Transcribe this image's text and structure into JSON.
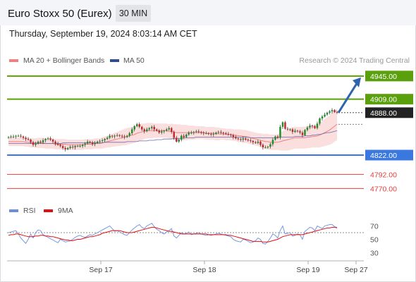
{
  "header": {
    "title": "Euro Stoxx 50 (Eurex)",
    "timeframe": "30 MIN"
  },
  "timestamp": "Thursday, September 19, 2024 8:03:14 AM CET",
  "legend": {
    "bollinger": "MA 20 + Bollinger Bands",
    "ma50": "MA 50",
    "credit": "Research © 2024 Trading Central"
  },
  "rsi_legend": {
    "rsi": "RSI",
    "ma9": "9MA"
  },
  "colors": {
    "resistance": "#5aa00c",
    "support": "#3a78e0",
    "target": "#e04040",
    "last": "#222222",
    "bollinger_fill": "#fbdcdc",
    "ma20": "#f08080",
    "ma50": "#6a6ab0",
    "candle_up": "#1f8f2a",
    "candle_down": "#c62828",
    "rsi": "#6a8fe0",
    "rsi_ma": "#e01010",
    "arrow": "#2f63b0"
  },
  "chart_data": [
    {
      "type": "candlestick",
      "y_range": [
        4754,
        4958
      ],
      "x_ticks": [
        "Sep 17",
        "Sep 18",
        "Sep 19",
        "Sep 27"
      ],
      "levels": [
        {
          "value": 4945.0,
          "label": "4945.00",
          "kind": "resistance"
        },
        {
          "value": 4909.0,
          "label": "4909.00",
          "kind": "resistance"
        },
        {
          "value": 4888.0,
          "label": "4888.00",
          "kind": "last"
        },
        {
          "value": 4822.0,
          "label": "4822.00",
          "kind": "support"
        },
        {
          "value": 4792.0,
          "label": "4792.00",
          "kind": "target"
        },
        {
          "value": 4770.0,
          "label": "4770.00",
          "kind": "target"
        }
      ],
      "closes": [
        4850,
        4851,
        4851,
        4852,
        4852,
        4851,
        4849,
        4847,
        4846,
        4842,
        4838,
        4840,
        4843,
        4842,
        4845,
        4847,
        4848,
        4846,
        4843,
        4840,
        4838,
        4836,
        4833,
        4831,
        4833,
        4835,
        4834,
        4836,
        4836,
        4836,
        4838,
        4840,
        4843,
        4842,
        4839,
        4841,
        4843,
        4844,
        4845,
        4847,
        4849,
        4852,
        4851,
        4852,
        4853,
        4852,
        4851,
        4850,
        4852,
        4856,
        4862,
        4867,
        4870,
        4866,
        4862,
        4859,
        4862,
        4864,
        4866,
        4862,
        4860,
        4857,
        4859,
        4860,
        4862,
        4864,
        4858,
        4849,
        4843,
        4846,
        4852,
        4850,
        4854,
        4857,
        4857,
        4858,
        4859,
        4858,
        4857,
        4856,
        4856,
        4855,
        4854,
        4855,
        4857,
        4858,
        4857,
        4856,
        4855,
        4854,
        4853,
        4850,
        4848,
        4847,
        4846,
        4848,
        4846,
        4845,
        4844,
        4842,
        4841,
        4843,
        4838,
        4834,
        4834,
        4835,
        4839,
        4846,
        4851,
        4849,
        4866,
        4873,
        4863,
        4862,
        4862,
        4858,
        4860,
        4859,
        4857,
        4853,
        4861,
        4865,
        4868,
        4867,
        4864,
        4871,
        4879,
        4882,
        4885,
        4888,
        4890,
        4892,
        4889,
        4888
      ],
      "ma20": [
        4843,
        4843,
        4843,
        4843,
        4843,
        4843,
        4843,
        4842,
        4842,
        4841,
        4841,
        4841,
        4841,
        4841,
        4841,
        4840,
        4840,
        4840,
        4840,
        4839,
        4839,
        4839,
        4839,
        4839,
        4838,
        4838,
        4838,
        4838,
        4838,
        4838,
        4838,
        4839,
        4839,
        4839,
        4839,
        4840,
        4840,
        4840,
        4841,
        4842,
        4843,
        4844,
        4845,
        4846,
        4847,
        4848,
        4849,
        4850,
        4851,
        4852,
        4853,
        4854,
        4856,
        4857,
        4858,
        4859,
        4860,
        4860,
        4860,
        4860,
        4860,
        4860,
        4860,
        4860,
        4860,
        4859,
        4859,
        4858,
        4857,
        4857,
        4857,
        4857,
        4857,
        4857,
        4857,
        4857,
        4857,
        4857,
        4857,
        4857,
        4856,
        4856,
        4856,
        4856,
        4855,
        4855,
        4855,
        4855,
        4854,
        4854,
        4854,
        4853,
        4853,
        4852,
        4852,
        4851,
        4851,
        4850,
        4849,
        4848,
        4847,
        4846,
        4845,
        4844,
        4843,
        4843,
        4842,
        4842,
        4842,
        4842,
        4843,
        4844,
        4845,
        4846,
        4847,
        4848,
        4849,
        4849,
        4849,
        4849,
        4849,
        4850,
        4850,
        4851,
        4851,
        4852,
        4853,
        4855,
        4857,
        4859,
        4861,
        4864,
        4867,
        4870
      ],
      "ma50": [
        4840,
        4840,
        4840,
        4840,
        4840,
        4840,
        4840,
        4840,
        4840,
        4840,
        4840,
        4840,
        4840,
        4840,
        4840,
        4840,
        4840,
        4840,
        4840,
        4840,
        4840,
        4840,
        4841,
        4841,
        4841,
        4841,
        4841,
        4841,
        4841,
        4841,
        4841,
        4841,
        4841,
        4841,
        4841,
        4841,
        4841,
        4841,
        4841,
        4842,
        4842,
        4842,
        4842,
        4842,
        4842,
        4842,
        4842,
        4842,
        4843,
        4843,
        4843,
        4843,
        4843,
        4844,
        4844,
        4844,
        4844,
        4845,
        4845,
        4845,
        4846,
        4846,
        4846,
        4847,
        4847,
        4847,
        4847,
        4848,
        4848,
        4848,
        4848,
        4849,
        4849,
        4849,
        4849,
        4849,
        4850,
        4850,
        4850,
        4850,
        4850,
        4850,
        4850,
        4850,
        4850,
        4850,
        4850,
        4850,
        4850,
        4850,
        4850,
        4850,
        4850,
        4850,
        4850,
        4850,
        4850,
        4850,
        4849,
        4849,
        4849,
        4849,
        4849,
        4849,
        4849,
        4849,
        4849,
        4849,
        4849,
        4849,
        4850,
        4850,
        4850,
        4850,
        4850,
        4850,
        4851,
        4851,
        4851,
        4851,
        4852,
        4852,
        4852,
        4853,
        4853,
        4854,
        4854,
        4855,
        4856,
        4857,
        4857,
        4858,
        4859,
        4860
      ],
      "bb_width": [
        7,
        7,
        7,
        7,
        7,
        7,
        7,
        7,
        7,
        7,
        7,
        7,
        8,
        8,
        8,
        8,
        8,
        8,
        8,
        8,
        8,
        8,
        8,
        8,
        8,
        8,
        8,
        8,
        8,
        8,
        8,
        8,
        8,
        8,
        8,
        8,
        8,
        8,
        9,
        9,
        9,
        10,
        10,
        11,
        11,
        12,
        12,
        13,
        13,
        13,
        13,
        13,
        13,
        13,
        13,
        12,
        12,
        12,
        12,
        11,
        11,
        11,
        11,
        11,
        11,
        11,
        12,
        12,
        13,
        13,
        12,
        12,
        12,
        11,
        11,
        11,
        10,
        10,
        10,
        10,
        10,
        10,
        10,
        10,
        10,
        10,
        9,
        9,
        9,
        9,
        9,
        9,
        9,
        10,
        10,
        10,
        10,
        10,
        10,
        10,
        10,
        10,
        11,
        11,
        12,
        12,
        12,
        12,
        12,
        12,
        14,
        15,
        16,
        17,
        17,
        17,
        17,
        17,
        17,
        17,
        17,
        17,
        17,
        17,
        17,
        18,
        19,
        20,
        21,
        22,
        23,
        24,
        24,
        25
      ]
    },
    {
      "type": "line",
      "title": "RSI",
      "y_range": [
        20,
        80
      ],
      "y_ticks": [
        70,
        50,
        30
      ],
      "reference_line": 60,
      "rsi": [
        60,
        61,
        62,
        63,
        58,
        52,
        48,
        44,
        50,
        58,
        52,
        60,
        64,
        63,
        57,
        55,
        53,
        51,
        49,
        47,
        45,
        50,
        48,
        46,
        47,
        48,
        50,
        53,
        55,
        56,
        54,
        53,
        55,
        57,
        56,
        58,
        60,
        62,
        64,
        66,
        68,
        70,
        66,
        62,
        63,
        61,
        59,
        57,
        56,
        60,
        64,
        67,
        70,
        72,
        68,
        66,
        70,
        72,
        74,
        69,
        65,
        63,
        60,
        58,
        61,
        63,
        66,
        55,
        52,
        56,
        60,
        58,
        59,
        61,
        57,
        58,
        59,
        60,
        58,
        57,
        56,
        57,
        56,
        57,
        58,
        59,
        58,
        57,
        56,
        55,
        54,
        50,
        48,
        47,
        46,
        50,
        49,
        47,
        45,
        46,
        48,
        52,
        50,
        44,
        43,
        47,
        52,
        58,
        56,
        52,
        63,
        70,
        58,
        59,
        60,
        55,
        56,
        58,
        57,
        50,
        62,
        65,
        68,
        67,
        63,
        70,
        68,
        66,
        70,
        71,
        72,
        72,
        69,
        66
      ],
      "rsi_ma": [
        56,
        57,
        57,
        58,
        58,
        57,
        56,
        55,
        54,
        54,
        54,
        55,
        55,
        56,
        56,
        55,
        55,
        54,
        54,
        53,
        52,
        51,
        50,
        49,
        49,
        48,
        48,
        49,
        50,
        50,
        51,
        52,
        53,
        54,
        54,
        55,
        56,
        57,
        59,
        60,
        61,
        62,
        63,
        63,
        63,
        63,
        62,
        61,
        60,
        60,
        60,
        61,
        62,
        63,
        64,
        65,
        66,
        67,
        68,
        68,
        67,
        66,
        65,
        64,
        63,
        62,
        62,
        61,
        60,
        59,
        58,
        58,
        58,
        58,
        58,
        58,
        58,
        58,
        58,
        58,
        58,
        57,
        57,
        57,
        57,
        57,
        57,
        57,
        57,
        56,
        56,
        55,
        54,
        53,
        52,
        51,
        50,
        49,
        48,
        47,
        47,
        47,
        47,
        46,
        46,
        46,
        47,
        48,
        49,
        50,
        52,
        54,
        55,
        56,
        57,
        57,
        57,
        57,
        57,
        57,
        58,
        59,
        60,
        61,
        62,
        63,
        64,
        65,
        66,
        67,
        67,
        68,
        68,
        68
      ]
    }
  ]
}
